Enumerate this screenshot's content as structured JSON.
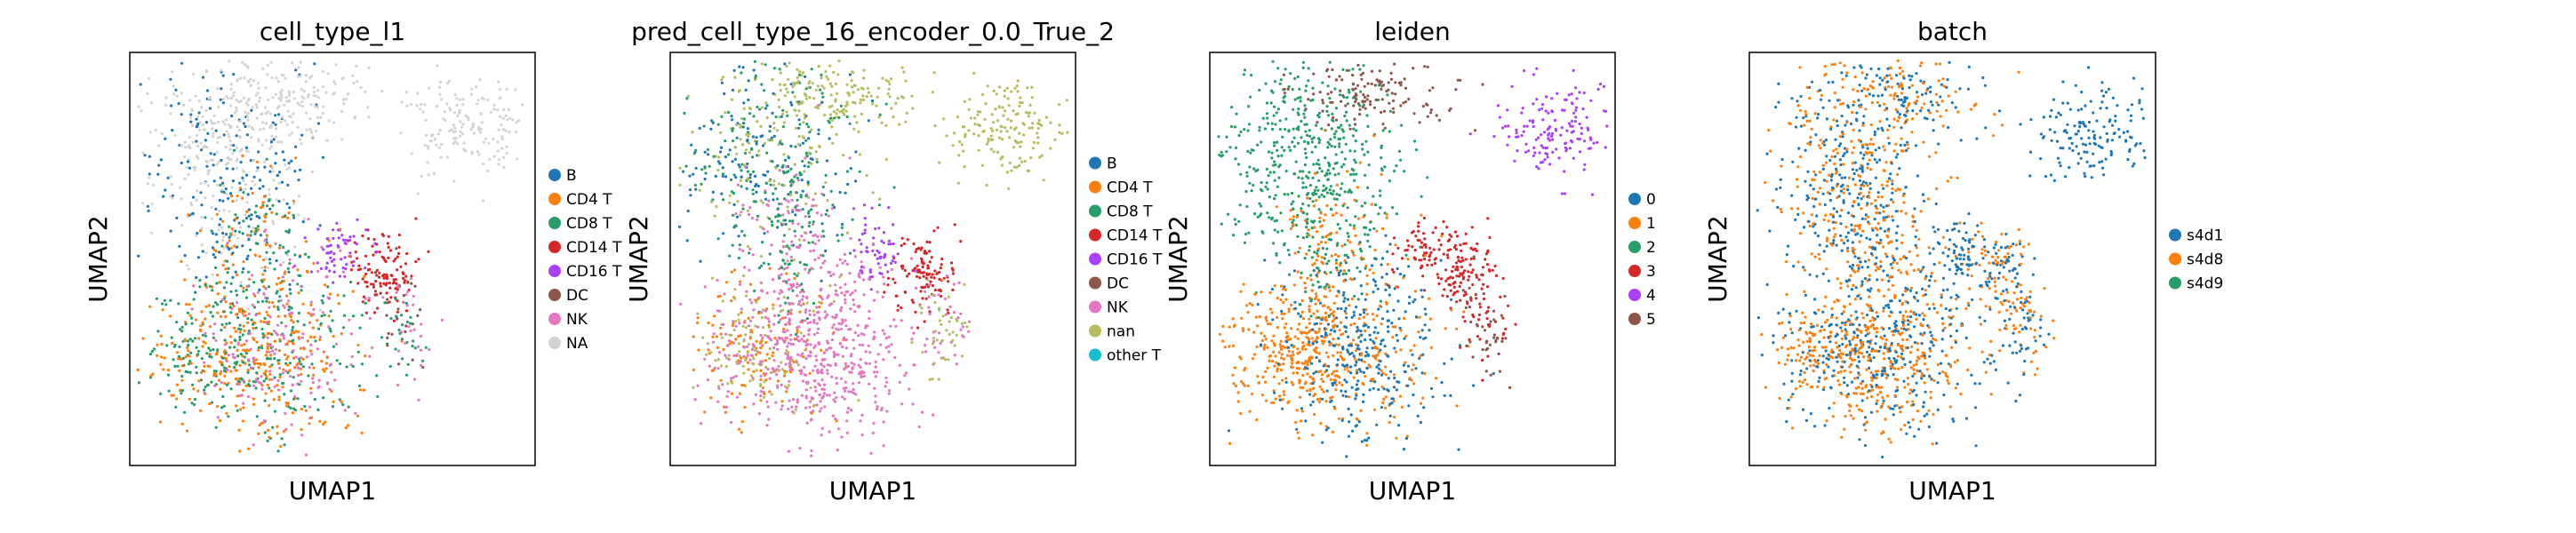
{
  "chart_data": [
    {
      "type": "scatter",
      "title": "cell_type_l1",
      "xlabel": "UMAP1",
      "ylabel": "UMAP2",
      "legend": "right",
      "categories": [
        {
          "label": "B",
          "color": "#1f77b4"
        },
        {
          "label": "CD4 T",
          "color": "#ff7f0e"
        },
        {
          "label": "CD8 T",
          "color": "#279e68"
        },
        {
          "label": "CD14 T",
          "color": "#d62728"
        },
        {
          "label": "CD16 T",
          "color": "#aa40fc"
        },
        {
          "label": "DC",
          "color": "#8c564b"
        },
        {
          "label": "NK",
          "color": "#e377c2"
        },
        {
          "label": "NA",
          "color": "#d3d3d3"
        }
      ]
    },
    {
      "type": "scatter",
      "title": "pred_cell_type_16_encoder_0.0_True_2",
      "xlabel": "UMAP1",
      "ylabel": "UMAP2",
      "legend": "right",
      "categories": [
        {
          "label": "B",
          "color": "#1f77b4"
        },
        {
          "label": "CD4 T",
          "color": "#ff7f0e"
        },
        {
          "label": "CD8 T",
          "color": "#279e68"
        },
        {
          "label": "CD14 T",
          "color": "#d62728"
        },
        {
          "label": "CD16 T",
          "color": "#aa40fc"
        },
        {
          "label": "DC",
          "color": "#8c564b"
        },
        {
          "label": "NK",
          "color": "#e377c2"
        },
        {
          "label": "nan",
          "color": "#b5bd61"
        },
        {
          "label": "other T",
          "color": "#17becf"
        }
      ]
    },
    {
      "type": "scatter",
      "title": "leiden",
      "xlabel": "UMAP1",
      "ylabel": "UMAP2",
      "legend": "right",
      "categories": [
        {
          "label": "0",
          "color": "#1f77b4"
        },
        {
          "label": "1",
          "color": "#ff7f0e"
        },
        {
          "label": "2",
          "color": "#279e68"
        },
        {
          "label": "3",
          "color": "#d62728"
        },
        {
          "label": "4",
          "color": "#aa40fc"
        },
        {
          "label": "5",
          "color": "#8c564b"
        }
      ]
    },
    {
      "type": "scatter",
      "title": "batch",
      "xlabel": "UMAP1",
      "ylabel": "UMAP2",
      "legend": "right",
      "categories": [
        {
          "label": "s4d1",
          "color": "#1f77b4"
        },
        {
          "label": "s4d8",
          "color": "#ff7f0e"
        },
        {
          "label": "s4d9",
          "color": "#279e68"
        }
      ]
    }
  ]
}
